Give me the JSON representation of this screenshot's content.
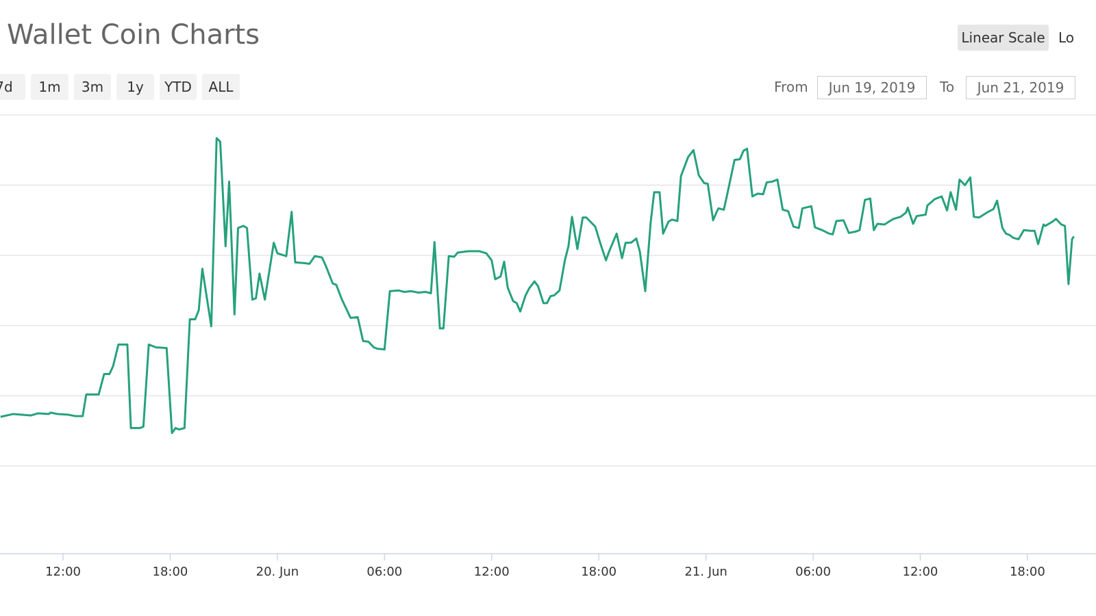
{
  "header": {
    "title": "Wallet Coin Charts",
    "range_buttons": [
      "7d",
      "1m",
      "3m",
      "1y",
      "YTD",
      "ALL"
    ],
    "scale_buttons": [
      "Linear Scale",
      "Lo"
    ],
    "from_label": "From",
    "from_date": "Jun 19, 2019",
    "to_label": "To",
    "to_date": "Jun 21, 2019"
  },
  "chart_data": {
    "type": "line",
    "color": "#26a17b",
    "xlim": [
      8.47,
      69.84
    ],
    "ylim": [
      -0.25,
      6
    ],
    "ygrid": [
      1,
      2,
      3,
      4,
      5,
      6
    ],
    "xticks": [
      {
        "value": 12,
        "label": "12:00"
      },
      {
        "value": 18,
        "label": "18:00"
      },
      {
        "value": 24,
        "label": "20. Jun"
      },
      {
        "value": 30,
        "label": "06:00"
      },
      {
        "value": 36,
        "label": "12:00"
      },
      {
        "value": 42,
        "label": "18:00"
      },
      {
        "value": 48,
        "label": "21. Jun"
      },
      {
        "value": 54,
        "label": "06:00"
      },
      {
        "value": 60,
        "label": "12:00"
      },
      {
        "value": 66,
        "label": "18:00"
      }
    ],
    "x": [
      8.5,
      9.2,
      10.2,
      10.6,
      11.2,
      11.3,
      11.7,
      12.3,
      12.7,
      13.1,
      13.3,
      14.0,
      14.3,
      14.6,
      14.8,
      15.1,
      15.6,
      15.8,
      16.3,
      16.5,
      16.8,
      17.2,
      17.8,
      18.1,
      18.3,
      18.5,
      18.8,
      19.1,
      19.4,
      19.6,
      19.8,
      20.3,
      20.6,
      20.8,
      21.1,
      21.3,
      21.6,
      21.8,
      22.1,
      22.3,
      22.6,
      22.8,
      23.0,
      23.3,
      23.8,
      24.0,
      24.5,
      24.8,
      25.0,
      25.5,
      25.8,
      26.1,
      26.5,
      26.7,
      27.1,
      27.3,
      27.6,
      28.1,
      28.5,
      28.8,
      29.1,
      29.4,
      29.6,
      30.0,
      30.3,
      30.8,
      31.1,
      31.5,
      31.9,
      32.3,
      32.6,
      32.8,
      33.1,
      33.3,
      33.6,
      33.9,
      34.1,
      34.7,
      35.3,
      35.7,
      36.0,
      36.2,
      36.5,
      36.7,
      36.9,
      37.2,
      37.4,
      37.6,
      37.9,
      38.1,
      38.4,
      38.6,
      38.9,
      39.1,
      39.3,
      39.5,
      39.8,
      40.1,
      40.3,
      40.5,
      40.8,
      41.1,
      41.3,
      41.8,
      42.1,
      42.4,
      42.6,
      43.0,
      43.3,
      43.5,
      43.8,
      44.1,
      44.3,
      44.6,
      44.9,
      45.1,
      45.4,
      45.6,
      45.9,
      46.1,
      46.4,
      46.6,
      47.0,
      47.3,
      47.6,
      47.9,
      48.1,
      48.4,
      48.6,
      48.7,
      49.0,
      49.2,
      49.6,
      49.9,
      50.1,
      50.3,
      50.6,
      50.9,
      51.2,
      51.4,
      51.7,
      52.0,
      52.3,
      52.6,
      52.9,
      53.2,
      53.4,
      53.9,
      54.1,
      54.5,
      54.9,
      55.1,
      55.3,
      55.7,
      56.0,
      56.4,
      56.6,
      56.9,
      57.2,
      57.4,
      57.6,
      58.0,
      58.3,
      58.5,
      58.9,
      59.2,
      59.3,
      59.6,
      59.8,
      60.3,
      60.4,
      60.8,
      61.2,
      61.5,
      61.7,
      62.0,
      62.2,
      62.5,
      62.8,
      63.0,
      63.3,
      63.8,
      64.1,
      64.3,
      64.6,
      64.8,
      65.0,
      65.2,
      65.5,
      65.8,
      66.2,
      66.4,
      66.6,
      66.9,
      67.0,
      67.4,
      67.6,
      67.9,
      68.1,
      68.3,
      68.5,
      68.6
    ],
    "values": [
      1.7,
      1.74,
      1.72,
      1.75,
      1.74,
      1.76,
      1.74,
      1.73,
      1.71,
      1.71,
      2.02,
      2.02,
      2.31,
      2.31,
      2.42,
      2.73,
      2.73,
      1.54,
      1.54,
      1.56,
      2.73,
      2.69,
      2.68,
      1.47,
      1.54,
      1.52,
      1.54,
      3.09,
      3.09,
      3.22,
      3.81,
      2.99,
      5.67,
      5.62,
      4.13,
      5.05,
      3.16,
      4.39,
      4.42,
      4.39,
      3.37,
      3.39,
      3.74,
      3.37,
      4.18,
      4.03,
      3.99,
      4.62,
      3.9,
      3.89,
      3.88,
      3.99,
      3.97,
      3.86,
      3.6,
      3.58,
      3.38,
      3.11,
      3.12,
      2.78,
      2.77,
      2.69,
      2.67,
      2.66,
      3.49,
      3.5,
      3.48,
      3.49,
      3.47,
      3.48,
      3.46,
      4.19,
      2.96,
      2.96,
      3.99,
      3.98,
      4.04,
      4.06,
      4.06,
      4.03,
      3.93,
      3.66,
      3.7,
      3.91,
      3.54,
      3.35,
      3.32,
      3.2,
      3.43,
      3.53,
      3.63,
      3.56,
      3.32,
      3.32,
      3.42,
      3.43,
      3.5,
      3.93,
      4.13,
      4.55,
      4.09,
      4.54,
      4.54,
      4.41,
      4.16,
      3.93,
      4.07,
      4.31,
      3.96,
      4.18,
      4.18,
      4.24,
      4.05,
      3.49,
      4.46,
      4.9,
      4.9,
      4.31,
      4.48,
      4.51,
      4.49,
      5.13,
      5.4,
      5.5,
      5.14,
      5.03,
      5.02,
      4.5,
      4.62,
      4.67,
      4.65,
      4.88,
      5.36,
      5.37,
      5.49,
      5.52,
      4.84,
      4.88,
      4.87,
      5.04,
      5.05,
      5.08,
      4.65,
      4.63,
      4.41,
      4.39,
      4.67,
      4.7,
      4.4,
      4.36,
      4.31,
      4.3,
      4.49,
      4.5,
      4.32,
      4.34,
      4.36,
      4.79,
      4.81,
      4.36,
      4.45,
      4.44,
      4.49,
      4.52,
      4.55,
      4.61,
      4.68,
      4.45,
      4.56,
      4.58,
      4.71,
      4.8,
      4.84,
      4.64,
      4.9,
      4.65,
      5.08,
      5.0,
      5.11,
      4.55,
      4.54,
      4.62,
      4.66,
      4.78,
      4.39,
      4.31,
      4.29,
      4.25,
      4.23,
      4.36,
      4.35,
      4.35,
      4.16,
      4.44,
      4.42,
      4.48,
      4.52,
      4.44,
      4.42,
      3.59,
      4.23,
      4.27
    ]
  }
}
